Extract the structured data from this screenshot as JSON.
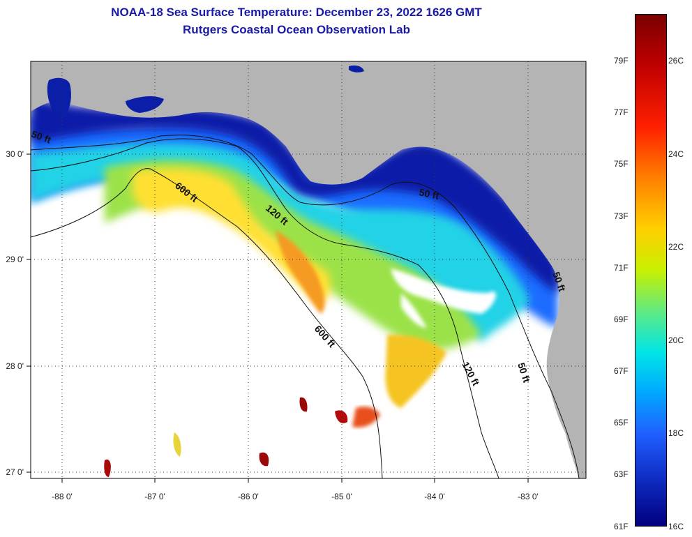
{
  "header": {
    "title": "NOAA-18 Sea Surface Temperature:  December 23, 2022 1626 GMT",
    "subtitle": "Rutgers Coastal Ocean Observation Lab"
  },
  "map": {
    "lon_ticks": [
      "-88 0'",
      "-87 0'",
      "-86 0'",
      "-85 0'",
      "-84 0'",
      "-83 0'"
    ],
    "lat_ticks": [
      "30 0'",
      "29 0'",
      "28 0'",
      "27 0'"
    ],
    "contour_labels": [
      "50 ft",
      "600 ft",
      "120 ft",
      "50 ft",
      "600 ft",
      "120 ft",
      "50 ft",
      "50 ft"
    ],
    "colors": {
      "land": "#b4b4b4",
      "no_data": "#ffffff",
      "cold": "#00208f",
      "warm": "#8b0000"
    }
  },
  "colorbar": {
    "fahrenheit": [
      "79F",
      "77F",
      "75F",
      "73F",
      "71F",
      "69F",
      "67F",
      "65F",
      "63F",
      "61F"
    ],
    "celsius": [
      "26C",
      "24C",
      "22C",
      "20C",
      "18C",
      "16C"
    ]
  }
}
